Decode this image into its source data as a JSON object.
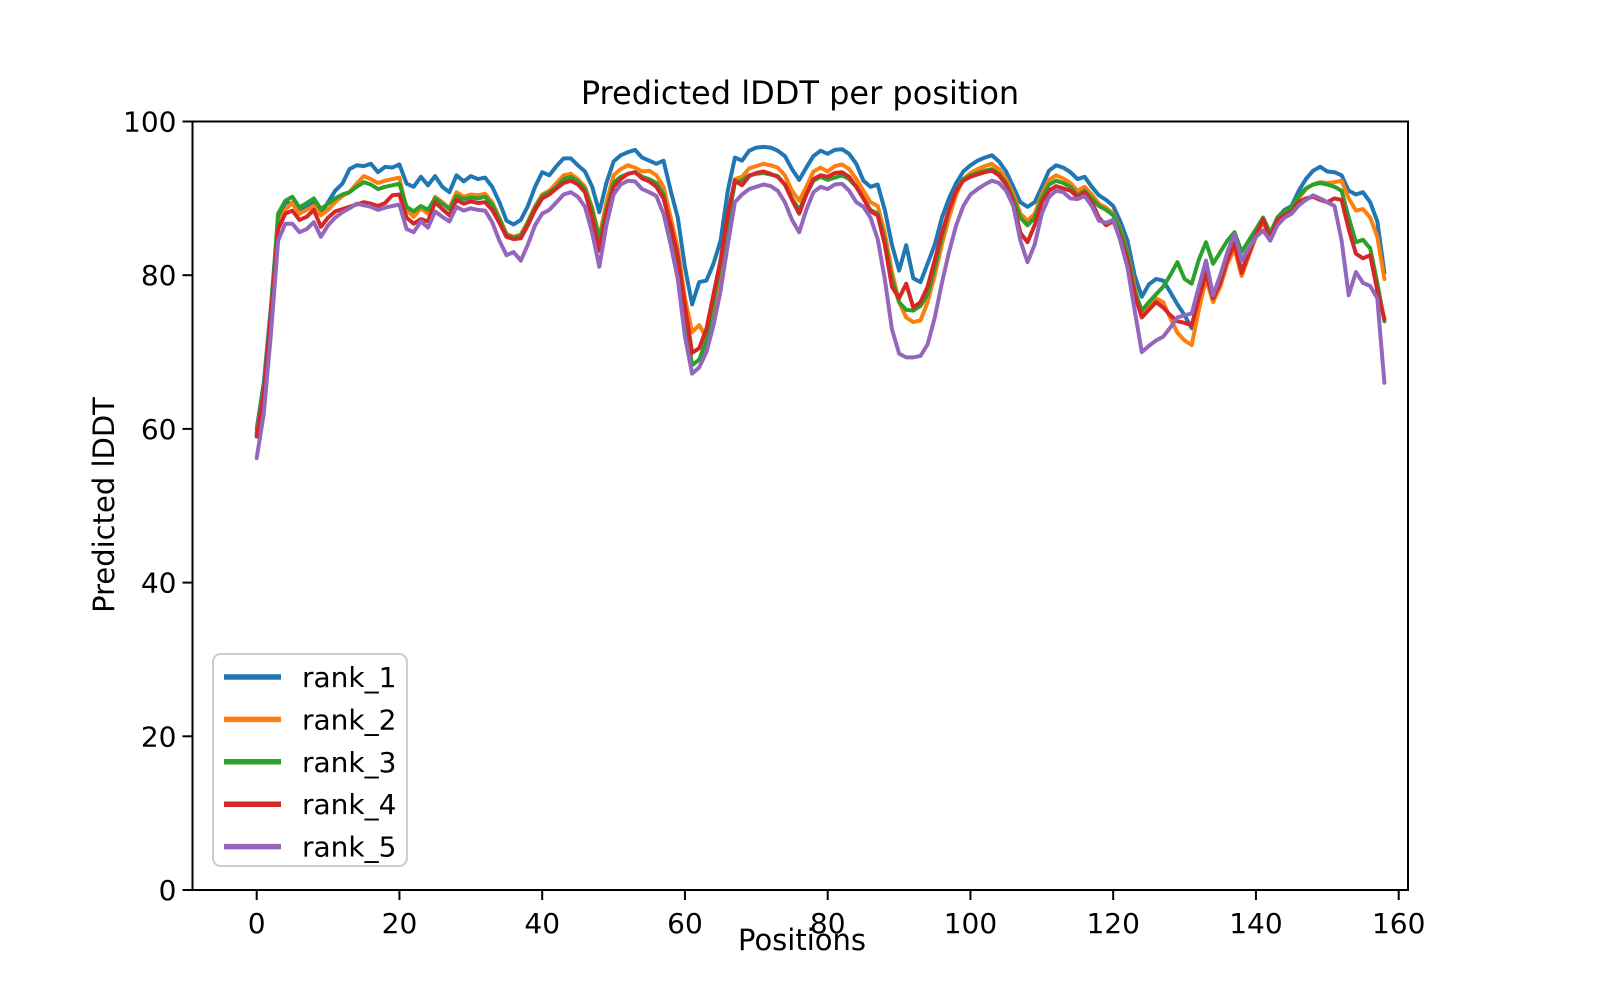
{
  "figure": {
    "background": "#ffffff",
    "spine_color": "#000000"
  },
  "chart_data": {
    "type": "line",
    "title": "Predicted lDDT per position",
    "xlabel": "Positions",
    "ylabel": "Predicted lDDT",
    "xlim": [
      -9,
      161.5
    ],
    "ylim": [
      0,
      100
    ],
    "grid": false,
    "legend_position": "lower left",
    "n_points": 159,
    "x_note": "x value equals point index (positions 0-158)",
    "x_ticks": [
      0,
      20,
      40,
      60,
      80,
      100,
      120,
      140,
      160
    ],
    "x_tick_labels": [
      "0",
      "20",
      "40",
      "60",
      "80",
      "100",
      "120",
      "140",
      "160"
    ],
    "y_ticks": [
      0,
      20,
      40,
      60,
      80,
      100
    ],
    "y_tick_labels": [
      "0",
      "20",
      "40",
      "60",
      "80",
      "100"
    ],
    "series": [
      {
        "name": "rank_1",
        "color": "#1f77b4",
        "values": [
          60.0,
          66.0,
          76.0,
          87.0,
          89.5,
          89.3,
          88.2,
          89.0,
          89.6,
          88.0,
          89.5,
          91.0,
          91.9,
          93.8,
          94.3,
          94.2,
          94.5,
          93.4,
          94.1,
          94.0,
          94.4,
          91.9,
          91.5,
          92.8,
          91.7,
          92.9,
          91.5,
          90.8,
          93.0,
          92.2,
          92.9,
          92.5,
          92.7,
          91.5,
          89.5,
          87.1,
          86.6,
          87.2,
          89.0,
          91.5,
          93.4,
          93.0,
          94.2,
          95.2,
          95.2,
          94.3,
          93.5,
          91.5,
          88.2,
          92.0,
          94.8,
          95.6,
          96.0,
          96.3,
          95.3,
          94.9,
          94.5,
          94.9,
          91.0,
          87.5,
          81.0,
          76.2,
          79.1,
          79.3,
          81.5,
          84.5,
          91.0,
          95.3,
          94.9,
          96.2,
          96.6,
          96.7,
          96.6,
          96.2,
          95.5,
          93.8,
          92.4,
          94.0,
          95.5,
          96.2,
          95.8,
          96.3,
          96.4,
          95.8,
          94.5,
          92.3,
          91.5,
          91.8,
          88.5,
          84.0,
          80.6,
          83.9,
          79.6,
          79.1,
          81.5,
          84.0,
          87.5,
          90.0,
          92.0,
          93.5,
          94.3,
          94.9,
          95.3,
          95.6,
          94.8,
          93.5,
          91.5,
          89.5,
          88.9,
          89.5,
          91.5,
          93.6,
          94.3,
          94.0,
          93.4,
          92.5,
          92.8,
          91.5,
          90.4,
          89.8,
          89.0,
          87.0,
          84.5,
          80.0,
          77.2,
          78.8,
          79.5,
          79.3,
          77.8,
          76.2,
          74.8,
          73.1,
          77.5,
          80.4,
          76.9,
          79.5,
          82.5,
          84.3,
          80.5,
          83.0,
          85.5,
          87.3,
          85.0,
          87.5,
          88.5,
          89.0,
          91.0,
          92.5,
          93.6,
          94.1,
          93.5,
          93.4,
          93.0,
          91.0,
          90.5,
          90.8,
          89.5,
          87.0,
          80.3
        ]
      },
      {
        "name": "rank_2",
        "color": "#ff7f0e",
        "values": [
          59.5,
          65.0,
          75.5,
          86.5,
          88.5,
          89.5,
          88.0,
          88.5,
          89.0,
          87.8,
          88.5,
          89.5,
          90.3,
          90.8,
          91.9,
          92.9,
          92.5,
          92.0,
          92.3,
          92.5,
          92.7,
          88.5,
          87.6,
          88.7,
          88.0,
          90.2,
          89.5,
          88.7,
          90.8,
          90.2,
          90.5,
          90.4,
          90.6,
          89.5,
          87.5,
          85.4,
          85.0,
          85.3,
          87.0,
          89.0,
          90.5,
          91.0,
          92.0,
          93.0,
          93.2,
          92.5,
          91.5,
          88.8,
          84.9,
          89.5,
          93.0,
          93.8,
          94.3,
          94.0,
          93.5,
          93.6,
          93.0,
          91.5,
          87.5,
          83.5,
          77.0,
          72.6,
          73.5,
          71.9,
          75.5,
          80.5,
          87.0,
          92.5,
          92.8,
          93.9,
          94.2,
          94.5,
          94.3,
          94.0,
          93.0,
          91.0,
          89.7,
          91.5,
          93.5,
          94.0,
          93.5,
          94.2,
          94.4,
          93.8,
          92.5,
          91.0,
          89.5,
          89.0,
          85.5,
          80.5,
          76.5,
          74.5,
          73.9,
          74.1,
          76.5,
          80.0,
          84.0,
          87.5,
          90.5,
          92.5,
          93.3,
          93.8,
          94.2,
          94.5,
          93.8,
          92.5,
          90.5,
          88.0,
          87.1,
          88.0,
          90.5,
          92.4,
          93.0,
          92.6,
          92.0,
          91.0,
          91.5,
          90.5,
          89.3,
          88.8,
          88.0,
          86.0,
          83.0,
          78.5,
          74.8,
          76.0,
          77.0,
          76.5,
          74.4,
          72.5,
          71.5,
          70.9,
          75.5,
          79.5,
          76.5,
          78.5,
          81.5,
          83.4,
          79.9,
          82.5,
          85.0,
          87.0,
          84.5,
          87.0,
          88.0,
          88.5,
          90.0,
          91.2,
          91.8,
          92.1,
          92.0,
          92.1,
          92.3,
          90.0,
          88.4,
          88.6,
          87.5,
          85.0,
          79.5
        ]
      },
      {
        "name": "rank_3",
        "color": "#2ca02c",
        "values": [
          59.3,
          65.0,
          75.5,
          88.0,
          89.7,
          90.2,
          88.8,
          89.4,
          90.0,
          88.6,
          89.3,
          90.0,
          90.5,
          90.8,
          91.5,
          92.1,
          91.8,
          91.2,
          91.5,
          91.7,
          91.9,
          88.9,
          88.3,
          89.0,
          88.5,
          90.0,
          89.3,
          88.6,
          90.3,
          89.9,
          90.1,
          90.0,
          90.2,
          89.2,
          87.3,
          85.2,
          84.9,
          85.1,
          86.8,
          88.8,
          90.3,
          90.8,
          91.5,
          92.5,
          92.8,
          92.2,
          91.2,
          88.5,
          84.7,
          88.5,
          92.0,
          92.8,
          93.2,
          93.4,
          92.8,
          92.5,
          92.0,
          90.5,
          86.0,
          81.5,
          74.5,
          68.3,
          69.0,
          71.5,
          76.5,
          81.5,
          87.0,
          92.0,
          92.3,
          93.0,
          93.2,
          93.3,
          93.1,
          92.9,
          91.8,
          90.0,
          88.5,
          90.5,
          92.3,
          92.8,
          92.4,
          92.7,
          93.0,
          92.5,
          91.5,
          90.0,
          88.5,
          88.0,
          84.5,
          79.5,
          76.5,
          75.5,
          75.4,
          76.0,
          77.5,
          81.0,
          85.0,
          88.5,
          91.0,
          92.5,
          93.0,
          93.3,
          93.6,
          93.8,
          93.2,
          92.0,
          90.0,
          87.5,
          86.5,
          87.5,
          90.0,
          91.8,
          92.3,
          92.0,
          91.5,
          90.4,
          91.0,
          90.0,
          89.0,
          88.5,
          87.8,
          85.8,
          82.8,
          78.0,
          75.4,
          76.5,
          77.5,
          78.5,
          80.0,
          81.7,
          79.5,
          78.9,
          82.0,
          84.3,
          81.5,
          83.0,
          84.5,
          85.6,
          83.0,
          84.5,
          86.0,
          87.5,
          85.5,
          87.5,
          88.3,
          88.8,
          90.3,
          91.3,
          91.8,
          92.0,
          91.8,
          91.5,
          91.0,
          87.5,
          84.3,
          84.6,
          83.5,
          79.0,
          74.0
        ]
      },
      {
        "name": "rank_4",
        "color": "#d62728",
        "values": [
          59.0,
          64.5,
          75.0,
          86.0,
          88.0,
          88.4,
          87.2,
          87.6,
          88.5,
          86.3,
          87.5,
          88.3,
          88.6,
          88.9,
          89.2,
          89.5,
          89.3,
          89.0,
          89.4,
          90.4,
          90.5,
          87.5,
          86.7,
          87.3,
          87.0,
          89.5,
          88.6,
          87.8,
          89.8,
          89.3,
          89.6,
          89.4,
          89.5,
          88.5,
          86.8,
          85.0,
          84.7,
          84.8,
          86.5,
          88.5,
          90.0,
          90.5,
          91.3,
          92.0,
          92.3,
          91.8,
          90.8,
          87.5,
          83.2,
          88.0,
          91.5,
          92.5,
          93.2,
          93.4,
          92.6,
          92.2,
          91.5,
          90.0,
          86.5,
          82.5,
          76.0,
          69.9,
          70.5,
          73.0,
          77.5,
          82.0,
          88.0,
          92.3,
          91.7,
          92.9,
          93.3,
          93.5,
          93.2,
          92.8,
          91.8,
          89.8,
          88.0,
          90.5,
          92.5,
          93.0,
          92.8,
          93.3,
          93.4,
          92.8,
          91.5,
          90.0,
          88.3,
          87.8,
          84.0,
          78.5,
          77.0,
          78.9,
          75.8,
          76.5,
          78.5,
          82.0,
          85.5,
          88.5,
          91.0,
          92.3,
          92.8,
          93.1,
          93.4,
          93.6,
          93.0,
          91.8,
          89.5,
          85.5,
          84.3,
          86.5,
          89.5,
          91.0,
          91.6,
          91.3,
          91.0,
          90.2,
          90.8,
          89.5,
          87.5,
          86.5,
          87.0,
          85.0,
          82.0,
          77.5,
          74.5,
          75.5,
          76.5,
          75.8,
          74.8,
          74.0,
          73.8,
          73.5,
          77.0,
          80.2,
          77.0,
          79.0,
          82.0,
          84.1,
          80.3,
          82.8,
          85.2,
          87.3,
          84.8,
          87.2,
          87.8,
          88.3,
          89.5,
          90.0,
          90.2,
          89.8,
          89.5,
          90.0,
          89.8,
          86.0,
          82.8,
          82.2,
          82.6,
          78.0,
          74.3
        ]
      },
      {
        "name": "rank_5",
        "color": "#9467bd",
        "values": [
          56.2,
          62.0,
          72.5,
          84.5,
          86.7,
          86.7,
          85.6,
          86.0,
          86.9,
          85.0,
          86.5,
          87.5,
          88.2,
          88.7,
          89.3,
          89.1,
          88.9,
          88.5,
          88.8,
          89.0,
          89.2,
          86.0,
          85.6,
          87.0,
          86.2,
          88.3,
          87.6,
          87.0,
          88.9,
          88.4,
          88.7,
          88.5,
          88.4,
          86.9,
          84.5,
          82.6,
          83.0,
          81.9,
          84.0,
          86.5,
          88.0,
          88.5,
          89.5,
          90.5,
          90.8,
          90.2,
          88.9,
          85.5,
          81.1,
          86.5,
          90.5,
          91.8,
          92.3,
          92.2,
          91.2,
          90.8,
          90.3,
          88.0,
          84.0,
          79.5,
          72.0,
          67.2,
          68.0,
          70.0,
          73.5,
          78.0,
          84.0,
          89.5,
          90.5,
          91.2,
          91.5,
          91.8,
          91.6,
          91.0,
          89.5,
          87.2,
          85.6,
          88.5,
          90.8,
          91.5,
          91.2,
          91.8,
          91.9,
          91.0,
          89.5,
          88.9,
          87.5,
          84.7,
          79.5,
          73.0,
          69.8,
          69.3,
          69.3,
          69.5,
          71.0,
          74.5,
          79.0,
          83.0,
          86.5,
          89.0,
          90.5,
          91.2,
          91.8,
          92.3,
          92.0,
          91.0,
          89.0,
          84.5,
          81.7,
          84.0,
          88.0,
          90.2,
          91.0,
          90.8,
          90.0,
          89.9,
          90.3,
          89.0,
          87.1,
          86.8,
          87.2,
          84.5,
          81.0,
          75.5,
          70.0,
          70.8,
          71.5,
          72.0,
          73.2,
          74.5,
          74.8,
          75.0,
          78.5,
          81.9,
          77.4,
          80.0,
          83.0,
          85.4,
          81.9,
          83.5,
          85.0,
          85.8,
          84.5,
          86.5,
          87.5,
          88.0,
          89.1,
          89.8,
          90.4,
          90.0,
          89.5,
          89.0,
          84.5,
          77.4,
          80.4,
          79.0,
          78.6,
          77.0,
          66.0
        ]
      }
    ],
    "legend": {
      "entries": [
        "rank_1",
        "rank_2",
        "rank_3",
        "rank_4",
        "rank_5"
      ],
      "border_color": "#cccccc",
      "background": "#ffffff"
    }
  }
}
